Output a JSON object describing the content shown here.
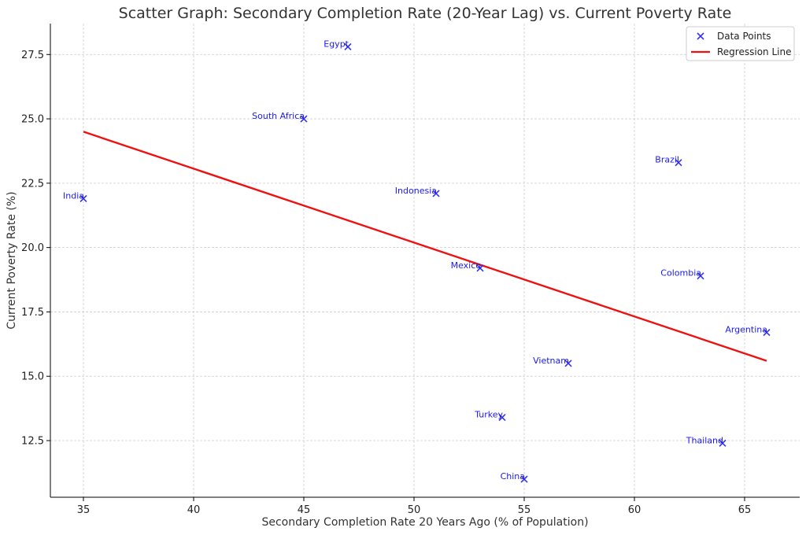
{
  "chart_data": {
    "type": "scatter",
    "title": "Scatter Graph: Secondary Completion Rate (20-Year Lag) vs. Current Poverty Rate",
    "xlabel": "Secondary Completion Rate 20 Years Ago (% of Population)",
    "ylabel": "Current Poverty Rate (%)",
    "xlim": [
      33.5,
      67.5
    ],
    "ylim": [
      10.3,
      28.7
    ],
    "xticks": [
      35,
      40,
      45,
      50,
      55,
      60,
      65
    ],
    "yticks": [
      12.5,
      15.0,
      17.5,
      20.0,
      22.5,
      25.0,
      27.5
    ],
    "grid": true,
    "legend_position": "top-right",
    "colors": {
      "points": "#3333ee",
      "labels": "#1a1aee",
      "regression": "#ee1111"
    },
    "series": [
      {
        "name": "Data Points",
        "marker": "x",
        "points": [
          {
            "label": "India",
            "x": 35,
            "y": 21.9
          },
          {
            "label": "South Africa",
            "x": 45,
            "y": 25.0
          },
          {
            "label": "Egypt",
            "x": 47,
            "y": 27.8
          },
          {
            "label": "Indonesia",
            "x": 51,
            "y": 22.1
          },
          {
            "label": "Mexico",
            "x": 53,
            "y": 19.2
          },
          {
            "label": "Turkey",
            "x": 54,
            "y": 13.4
          },
          {
            "label": "China",
            "x": 55,
            "y": 11.0
          },
          {
            "label": "Vietnam",
            "x": 57,
            "y": 15.5
          },
          {
            "label": "Brazil",
            "x": 62,
            "y": 23.3
          },
          {
            "label": "Colombia",
            "x": 63,
            "y": 18.9
          },
          {
            "label": "Thailand",
            "x": 64,
            "y": 12.4
          },
          {
            "label": "Argentina",
            "x": 66,
            "y": 16.7
          }
        ]
      },
      {
        "name": "Regression Line",
        "type": "line",
        "points": [
          {
            "x": 35,
            "y": 24.5
          },
          {
            "x": 66,
            "y": 15.6
          }
        ]
      }
    ]
  }
}
